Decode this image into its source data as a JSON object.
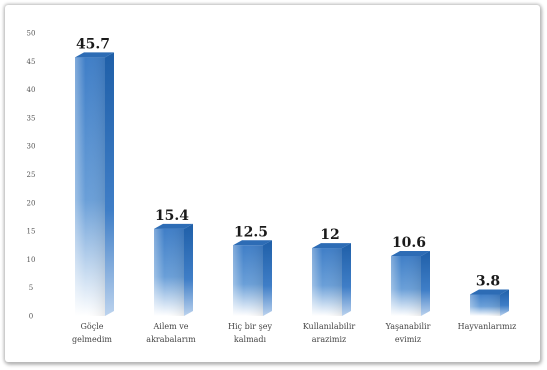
{
  "chart_data": {
    "type": "bar",
    "categories": [
      [
        "Göçle",
        "gelmedim"
      ],
      [
        "Ailem ve",
        "akrabalarım"
      ],
      [
        "Hiç bir şey",
        "kalmadı"
      ],
      [
        "Kullanılabilir",
        "arazimiz"
      ],
      [
        "Yaşanabilir",
        "evimiz"
      ],
      [
        "Hayvanlarımız"
      ]
    ],
    "values": [
      45.7,
      15.4,
      12.5,
      12,
      10.6,
      3.8
    ],
    "value_labels": [
      "45.7",
      "15.4",
      "12.5",
      "12",
      "10.6",
      "3.8"
    ],
    "ylim": [
      0,
      50
    ],
    "yticks": [
      0,
      5,
      10,
      15,
      20,
      25,
      30,
      35,
      40,
      45,
      50
    ],
    "grid": false,
    "bar_style": "3d-cylinder",
    "colors": {
      "bar_top": "#3f7ec7",
      "bar_bottom": "#ffffff",
      "bar_side": "#1f5fa8",
      "bar_cap": "#2d6cb5"
    }
  }
}
